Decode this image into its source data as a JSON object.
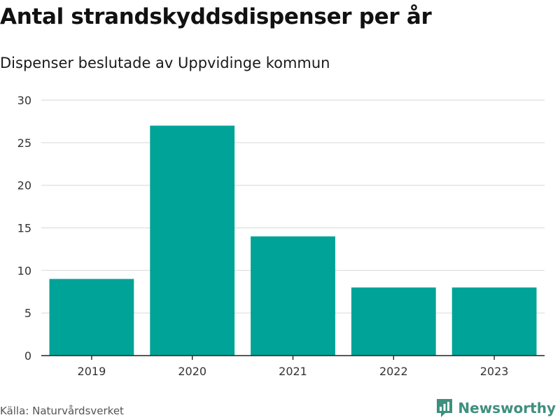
{
  "header": {
    "title": "Antal strandskyddsdispenser per år",
    "subtitle": "Dispenser beslutade av Uppvidinge kommun"
  },
  "footer": {
    "source": "Källa: Naturvårdsverket",
    "brand": "Newsworthy"
  },
  "colors": {
    "bar": "#00a398",
    "grid": "#dddddd",
    "axis": "#222222",
    "brand": "#3f8f7f"
  },
  "chart_data": {
    "type": "bar",
    "title": "Antal strandskyddsdispenser per år",
    "subtitle": "Dispenser beslutade av Uppvidinge kommun",
    "xlabel": "",
    "ylabel": "",
    "categories": [
      "2019",
      "2020",
      "2021",
      "2022",
      "2023"
    ],
    "values": [
      9,
      27,
      14,
      8,
      8
    ],
    "ylim": [
      0,
      30
    ],
    "yticks": [
      0,
      5,
      10,
      15,
      20,
      25,
      30
    ],
    "grid": true,
    "legend": "none"
  }
}
